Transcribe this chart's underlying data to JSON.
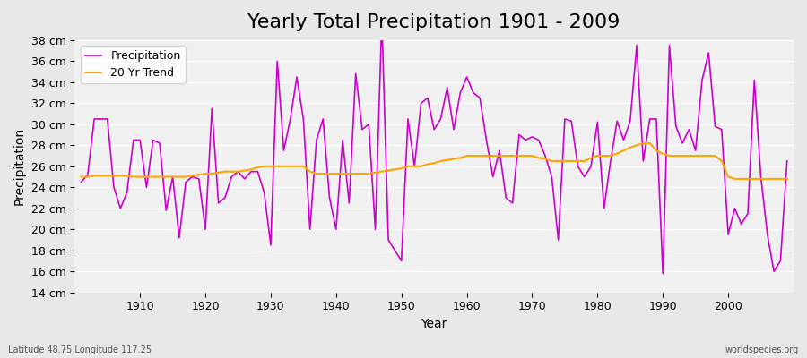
{
  "title": "Yearly Total Precipitation 1901 - 2009",
  "xlabel": "Year",
  "ylabel": "Precipitation",
  "subtitle": "Latitude 48.75 Longitude 117.25",
  "watermark": "worldspecies.org",
  "years": [
    1901,
    1902,
    1903,
    1904,
    1905,
    1906,
    1907,
    1908,
    1909,
    1910,
    1911,
    1912,
    1913,
    1914,
    1915,
    1916,
    1917,
    1918,
    1919,
    1920,
    1921,
    1922,
    1923,
    1924,
    1925,
    1926,
    1927,
    1928,
    1929,
    1930,
    1931,
    1932,
    1933,
    1934,
    1935,
    1936,
    1937,
    1938,
    1939,
    1940,
    1941,
    1942,
    1943,
    1944,
    1945,
    1946,
    1947,
    1948,
    1949,
    1950,
    1951,
    1952,
    1953,
    1954,
    1955,
    1956,
    1957,
    1958,
    1959,
    1960,
    1961,
    1962,
    1963,
    1964,
    1965,
    1966,
    1967,
    1968,
    1969,
    1970,
    1971,
    1972,
    1973,
    1974,
    1975,
    1976,
    1977,
    1978,
    1979,
    1980,
    1981,
    1982,
    1983,
    1984,
    1985,
    1986,
    1987,
    1988,
    1989,
    1990,
    1991,
    1992,
    1993,
    1994,
    1995,
    1996,
    1997,
    1998,
    1999,
    2000,
    2001,
    2002,
    2003,
    2004,
    2005,
    2006,
    2007,
    2008,
    2009
  ],
  "precipitation": [
    24.5,
    25.2,
    30.5,
    30.5,
    30.5,
    24.0,
    22.0,
    23.5,
    28.5,
    28.5,
    24.0,
    28.5,
    28.2,
    21.8,
    25.0,
    19.2,
    24.5,
    25.0,
    24.8,
    20.0,
    31.5,
    22.5,
    23.0,
    25.0,
    25.5,
    24.8,
    25.5,
    25.5,
    23.5,
    18.5,
    36.0,
    27.5,
    30.5,
    34.5,
    30.5,
    20.0,
    28.5,
    30.5,
    23.0,
    20.0,
    28.5,
    22.5,
    34.8,
    29.5,
    30.0,
    20.0,
    40.0,
    19.0,
    18.0,
    17.0,
    30.5,
    26.0,
    32.0,
    32.5,
    29.5,
    30.5,
    33.5,
    29.5,
    33.0,
    34.5,
    33.0,
    32.5,
    28.5,
    25.0,
    27.5,
    23.0,
    22.5,
    29.0,
    28.5,
    28.8,
    28.5,
    27.0,
    25.0,
    19.0,
    30.5,
    30.3,
    26.0,
    25.0,
    26.0,
    30.2,
    22.0,
    26.5,
    30.3,
    28.5,
    30.3,
    37.5,
    26.5,
    30.5,
    30.5,
    15.8,
    37.5,
    29.8,
    28.2,
    29.5,
    27.5,
    34.2,
    36.8,
    29.8,
    29.5,
    19.5,
    22.0,
    20.5,
    21.5,
    34.2,
    25.0,
    19.5,
    16.0,
    17.0,
    26.5
  ],
  "trend": [
    25.0,
    25.0,
    25.1,
    25.1,
    25.1,
    25.1,
    25.1,
    25.1,
    25.0,
    25.0,
    25.0,
    25.0,
    25.0,
    25.0,
    25.0,
    25.0,
    25.0,
    25.1,
    25.2,
    25.3,
    25.3,
    25.4,
    25.5,
    25.5,
    25.5,
    25.6,
    25.7,
    25.9,
    26.0,
    26.0,
    26.0,
    26.0,
    26.0,
    26.0,
    26.0,
    25.5,
    25.3,
    25.3,
    25.3,
    25.3,
    25.3,
    25.3,
    25.3,
    25.3,
    25.3,
    25.4,
    25.5,
    25.6,
    25.7,
    25.8,
    26.0,
    26.0,
    26.0,
    26.2,
    26.3,
    26.5,
    26.6,
    26.7,
    26.8,
    27.0,
    27.0,
    27.0,
    27.0,
    27.0,
    27.0,
    27.0,
    27.0,
    27.0,
    27.0,
    27.0,
    26.8,
    26.7,
    26.5,
    26.5,
    26.5,
    26.5,
    26.5,
    26.5,
    26.8,
    27.0,
    27.0,
    27.0,
    27.2,
    27.5,
    27.8,
    28.0,
    28.2,
    28.2,
    27.5,
    27.2,
    27.0,
    27.0,
    27.0,
    27.0,
    27.0,
    27.0,
    27.0,
    27.0,
    26.5,
    25.0,
    24.8,
    24.8,
    24.8,
    24.8,
    24.8,
    24.8,
    24.8,
    24.8,
    24.8
  ],
  "precip_color": "#CC00CC",
  "trend_color": "#FFA500",
  "bg_color": "#E8E8E8",
  "plot_bg_color": "#F0F0F0",
  "grid_color": "#FFFFFF",
  "ylim": [
    14,
    38
  ],
  "yticks": [
    14,
    16,
    18,
    20,
    22,
    24,
    26,
    28,
    30,
    32,
    34,
    36,
    38
  ],
  "xticks": [
    1910,
    1920,
    1930,
    1940,
    1950,
    1960,
    1970,
    1980,
    1990,
    2000
  ],
  "title_fontsize": 16,
  "label_fontsize": 10,
  "tick_fontsize": 9
}
